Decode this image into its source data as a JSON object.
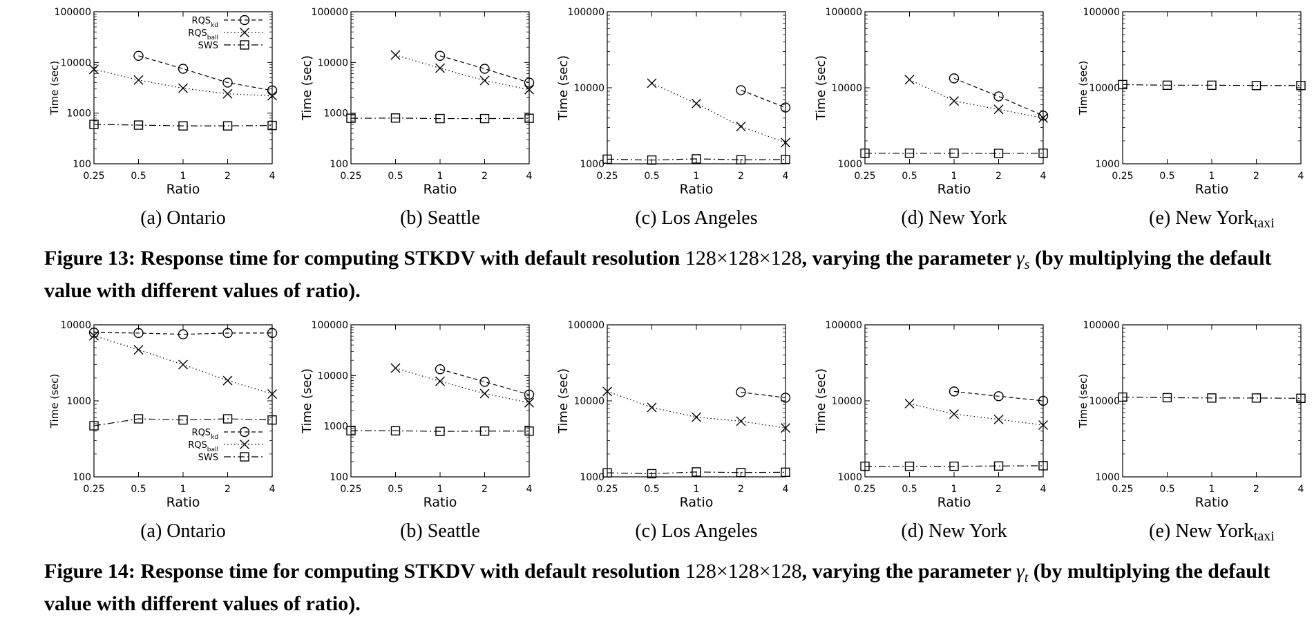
{
  "figures": [
    {
      "id": "fig13",
      "caption": {
        "bold_1": "Figure 13: Response time for computing STKDV with default resolution ",
        "resolution": "128×128×128",
        "bold_2": ", varying the parameter ",
        "gamma": "γ",
        "sub": "s",
        "bold_3": " (by multiplying the default value with different values of ratio)."
      }
    },
    {
      "id": "fig14",
      "caption": {
        "bold_1": "Figure 14: Response time for computing STKDV with default resolution ",
        "resolution": "128×128×128",
        "bold_2": ", varying the parameter ",
        "gamma": "γ",
        "sub": "t",
        "bold_3": " (by multiplying the default value with different values of ratio)."
      }
    }
  ],
  "legend": {
    "rqs_kd": {
      "base": "RQS",
      "sub": "kd"
    },
    "rqs_ball": {
      "base": "RQS",
      "sub": "ball"
    },
    "sws": {
      "base": "SWS",
      "sub": ""
    }
  },
  "chart_data": [
    {
      "figure": "fig13",
      "type": "line",
      "scale": "log",
      "title": "(a) Ontario",
      "subtitle_base": "(a) Ontario",
      "subtitle_sub": "",
      "xlabel": "Ratio",
      "ylabel": "Time (sec)",
      "ylabel_small": true,
      "x": [
        "0.25",
        "0.5",
        "1",
        "2",
        "4"
      ],
      "ylim": [
        100,
        100000
      ],
      "yticks": [
        "100",
        "1000",
        "10000",
        "100000"
      ],
      "yticks_values": [
        100,
        1000,
        10000,
        100000
      ],
      "legend": "top-right",
      "series": [
        {
          "name": "RQSkd",
          "marker": "circle",
          "values": [
            null,
            13500,
            7500,
            4000,
            2800
          ]
        },
        {
          "name": "RQSball",
          "marker": "cross",
          "values": [
            7300,
            4500,
            3100,
            2400,
            2200
          ]
        },
        {
          "name": "SWS",
          "marker": "square",
          "values": [
            600,
            580,
            560,
            560,
            570
          ]
        }
      ]
    },
    {
      "figure": "fig13",
      "type": "line",
      "scale": "log",
      "title": "(b) Seattle",
      "subtitle_base": "(b) Seattle",
      "subtitle_sub": "",
      "xlabel": "Ratio",
      "ylabel": "Time (sec)",
      "ylabel_small": false,
      "x": [
        "0.25",
        "0.5",
        "1",
        "2",
        "4"
      ],
      "ylim": [
        100,
        100000
      ],
      "yticks": [
        "100",
        "1000",
        "10000",
        "100000"
      ],
      "yticks_values": [
        100,
        1000,
        10000,
        100000
      ],
      "legend": "",
      "series": [
        {
          "name": "RQSkd",
          "marker": "circle",
          "values": [
            null,
            null,
            13500,
            7500,
            4000
          ]
        },
        {
          "name": "RQSball",
          "marker": "cross",
          "values": [
            null,
            14000,
            7700,
            4400,
            2900
          ]
        },
        {
          "name": "SWS",
          "marker": "square",
          "values": [
            790,
            800,
            780,
            780,
            790
          ]
        }
      ]
    },
    {
      "figure": "fig13",
      "type": "line",
      "scale": "log",
      "title": "(c) Los Angeles",
      "subtitle_base": "(c) Los Angeles",
      "subtitle_sub": "",
      "xlabel": "Ratio",
      "ylabel": "Time (sec)",
      "ylabel_small": false,
      "x": [
        "0.25",
        "0.5",
        "1",
        "2",
        "4"
      ],
      "ylim": [
        1000,
        100000
      ],
      "yticks": [
        "1000",
        "10000",
        "100000"
      ],
      "yticks_values": [
        1000,
        10000,
        100000
      ],
      "legend": "",
      "series": [
        {
          "name": "RQSkd",
          "marker": "circle",
          "values": [
            null,
            null,
            null,
            9300,
            5500
          ]
        },
        {
          "name": "RQSball",
          "marker": "cross",
          "values": [
            null,
            11500,
            6200,
            3100,
            1900
          ]
        },
        {
          "name": "SWS",
          "marker": "square",
          "values": [
            1150,
            1120,
            1160,
            1130,
            1140
          ]
        }
      ]
    },
    {
      "figure": "fig13",
      "type": "line",
      "scale": "log",
      "title": "(d) New York",
      "subtitle_base": "(d) New York",
      "subtitle_sub": "",
      "xlabel": "Ratio",
      "ylabel": "Time (sec)",
      "ylabel_small": false,
      "x": [
        "0.25",
        "0.5",
        "1",
        "2",
        "4"
      ],
      "ylim": [
        1000,
        100000
      ],
      "yticks": [
        "1000",
        "10000",
        "100000"
      ],
      "yticks_values": [
        1000,
        10000,
        100000
      ],
      "legend": "",
      "series": [
        {
          "name": "RQSkd",
          "marker": "circle",
          "values": [
            null,
            null,
            13300,
            7700,
            4300
          ]
        },
        {
          "name": "RQSball",
          "marker": "cross",
          "values": [
            null,
            12800,
            6700,
            5200,
            4000
          ]
        },
        {
          "name": "SWS",
          "marker": "square",
          "values": [
            1380,
            1380,
            1380,
            1370,
            1380
          ]
        }
      ]
    },
    {
      "figure": "fig13",
      "type": "line",
      "scale": "log",
      "title": "(e) New York taxi",
      "subtitle_base": "(e) New York",
      "subtitle_sub": "taxi",
      "xlabel": "Ratio",
      "ylabel": "Time (sec)",
      "ylabel_small": true,
      "x": [
        "0.25",
        "0.5",
        "1",
        "2",
        "4"
      ],
      "ylim": [
        1000,
        100000
      ],
      "yticks": [
        "1000",
        "10000",
        "100000"
      ],
      "yticks_values": [
        1000,
        10000,
        100000
      ],
      "legend": "",
      "series": [
        {
          "name": "SWS",
          "marker": "square",
          "values": [
            11000,
            10800,
            10800,
            10700,
            10700
          ]
        }
      ]
    },
    {
      "figure": "fig14",
      "type": "line",
      "scale": "log",
      "title": "(a) Ontario",
      "subtitle_base": "(a) Ontario",
      "subtitle_sub": "",
      "xlabel": "Ratio",
      "ylabel": "Time (sec)",
      "ylabel_small": true,
      "x": [
        "0.25",
        "0.5",
        "1",
        "2",
        "4"
      ],
      "ylim": [
        100,
        10000
      ],
      "yticks": [
        "100",
        "1000",
        "10000"
      ],
      "yticks_values": [
        100,
        1000,
        10000
      ],
      "legend": "bottom-right",
      "series": [
        {
          "name": "RQSkd",
          "marker": "circle",
          "values": [
            7900,
            7800,
            7500,
            7800,
            7800
          ]
        },
        {
          "name": "RQSball",
          "marker": "cross",
          "values": [
            7200,
            4700,
            3000,
            1850,
            1230
          ]
        },
        {
          "name": "SWS",
          "marker": "square",
          "values": [
            470,
            580,
            560,
            580,
            560
          ]
        }
      ]
    },
    {
      "figure": "fig14",
      "type": "line",
      "scale": "log",
      "title": "(b) Seattle",
      "subtitle_base": "(b) Seattle",
      "subtitle_sub": "",
      "xlabel": "Ratio",
      "ylabel": "Time (sec)",
      "ylabel_small": false,
      "x": [
        "0.25",
        "0.5",
        "1",
        "2",
        "4"
      ],
      "ylim": [
        100,
        100000
      ],
      "yticks": [
        "100",
        "1000",
        "10000",
        "100000"
      ],
      "yticks_values": [
        100,
        1000,
        10000,
        100000
      ],
      "legend": "",
      "series": [
        {
          "name": "RQSkd",
          "marker": "circle",
          "values": [
            null,
            null,
            13300,
            7500,
            4200
          ]
        },
        {
          "name": "RQSball",
          "marker": "cross",
          "values": [
            null,
            14000,
            7700,
            4400,
            2900
          ]
        },
        {
          "name": "SWS",
          "marker": "square",
          "values": [
            810,
            810,
            790,
            800,
            800
          ]
        }
      ]
    },
    {
      "figure": "fig14",
      "type": "line",
      "scale": "log",
      "title": "(c) Los Angeles",
      "subtitle_base": "(c) Los Angeles",
      "subtitle_sub": "",
      "xlabel": "Ratio",
      "ylabel": "Time (sec)",
      "ylabel_small": false,
      "x": [
        "0.25",
        "0.5",
        "1",
        "2",
        "4"
      ],
      "ylim": [
        1000,
        100000
      ],
      "yticks": [
        "1000",
        "10000",
        "100000"
      ],
      "yticks_values": [
        1000,
        10000,
        100000
      ],
      "legend": "",
      "series": [
        {
          "name": "RQSkd",
          "marker": "circle",
          "values": [
            null,
            null,
            null,
            13000,
            11000
          ]
        },
        {
          "name": "RQSball",
          "marker": "cross",
          "values": [
            13300,
            8200,
            6100,
            5400,
            4400
          ]
        },
        {
          "name": "SWS",
          "marker": "square",
          "values": [
            1130,
            1100,
            1160,
            1140,
            1150
          ]
        }
      ]
    },
    {
      "figure": "fig14",
      "type": "line",
      "scale": "log",
      "title": "(d) New York",
      "subtitle_base": "(d) New York",
      "subtitle_sub": "",
      "xlabel": "Ratio",
      "ylabel": "Time (sec)",
      "ylabel_small": false,
      "x": [
        "0.25",
        "0.5",
        "1",
        "2",
        "4"
      ],
      "ylim": [
        1000,
        100000
      ],
      "yticks": [
        "1000",
        "10000",
        "100000"
      ],
      "yticks_values": [
        1000,
        10000,
        100000
      ],
      "legend": "",
      "series": [
        {
          "name": "RQSkd",
          "marker": "circle",
          "values": [
            null,
            null,
            13300,
            11500,
            10000
          ]
        },
        {
          "name": "RQSball",
          "marker": "cross",
          "values": [
            null,
            9200,
            6700,
            5700,
            4800
          ]
        },
        {
          "name": "SWS",
          "marker": "square",
          "values": [
            1380,
            1380,
            1380,
            1390,
            1400
          ]
        }
      ]
    },
    {
      "figure": "fig14",
      "type": "line",
      "scale": "log",
      "title": "(e) New York taxi",
      "subtitle_base": "(e) New York",
      "subtitle_sub": "taxi",
      "xlabel": "Ratio",
      "ylabel": "Time (sec)",
      "ylabel_small": true,
      "x": [
        "0.25",
        "0.5",
        "1",
        "2",
        "4"
      ],
      "ylim": [
        1000,
        100000
      ],
      "yticks": [
        "1000",
        "10000",
        "100000"
      ],
      "yticks_values": [
        1000,
        10000,
        100000
      ],
      "legend": "",
      "series": [
        {
          "name": "SWS",
          "marker": "square",
          "values": [
            11200,
            11000,
            10900,
            10900,
            10800
          ]
        }
      ]
    }
  ]
}
